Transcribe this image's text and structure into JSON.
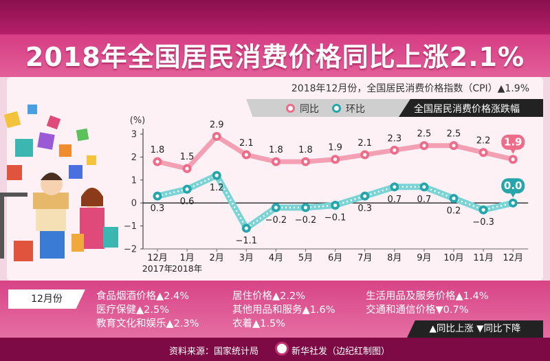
{
  "title": "2018年全国居民消费价格同比上涨2.1%",
  "subtitle": "2018年12月份，全国居民消费价格指数（CPI）▲1.9%",
  "legend": {
    "yoy_label": "同比",
    "mom_label": "环比",
    "chart_name": "全国居民消费价格涨跌幅"
  },
  "colors": {
    "yoy": "#f3a0b4",
    "yoy_marker": "#ec6c89",
    "mom": "#7ad4d6",
    "mom_marker": "#26a6aa",
    "accent": "#d63c84",
    "dark": "#7d0a44"
  },
  "chart_data": {
    "type": "line",
    "ylabel": "(%)",
    "ylim": [
      -2,
      3
    ],
    "yticks": [
      -2,
      -1,
      0,
      1,
      2,
      3
    ],
    "categories": [
      "12月",
      "1月",
      "2月",
      "3月",
      "4月",
      "5月",
      "6月",
      "7月",
      "8月",
      "9月",
      "10月",
      "11月",
      "12月"
    ],
    "category_sublabels": [
      "2017年",
      "2018年",
      "",
      "",
      "",
      "",
      "",
      "",
      "",
      "",
      "",
      "",
      ""
    ],
    "series": [
      {
        "name": "同比",
        "values": [
          1.8,
          1.5,
          2.9,
          2.1,
          1.8,
          1.8,
          1.9,
          2.1,
          2.3,
          2.5,
          2.5,
          2.2,
          1.9
        ],
        "labels": [
          "1.8",
          "1.5",
          "2.9",
          "2.1",
          "1.8",
          "1.8",
          "1.9",
          "2.1",
          "2.3",
          "2.5",
          "2.5",
          "2.2",
          "1.9"
        ]
      },
      {
        "name": "环比",
        "values": [
          0.3,
          0.6,
          1.2,
          -1.1,
          -0.2,
          -0.2,
          -0.1,
          0.3,
          0.7,
          0.7,
          0.2,
          -0.3,
          0.0
        ],
        "labels": [
          "0.3",
          "0.6",
          "1.2",
          "−1.1",
          "−0.2",
          "−0.2",
          "−0.1",
          "0.3",
          "0.7",
          "0.7",
          "0.2",
          "−0.3",
          "0.0"
        ]
      }
    ]
  },
  "categories_panel": {
    "month_tag": "12月份",
    "items": [
      "食品烟酒价格▲2.4%",
      "居住价格▲2.2%",
      "生活用品及服务价格▲1.4%",
      "医疗保健▲2.5%",
      "其他用品和服务▲1.6%",
      "交通和通信价格▼0.7%",
      "教育文化和娱乐▲2.3%",
      "衣着▲1.5%"
    ],
    "key": "▲同比上涨  ▼同比下降"
  },
  "footer": {
    "source": "资料来源：国家统计局",
    "agency": "新华社发（边纪红制图）"
  }
}
